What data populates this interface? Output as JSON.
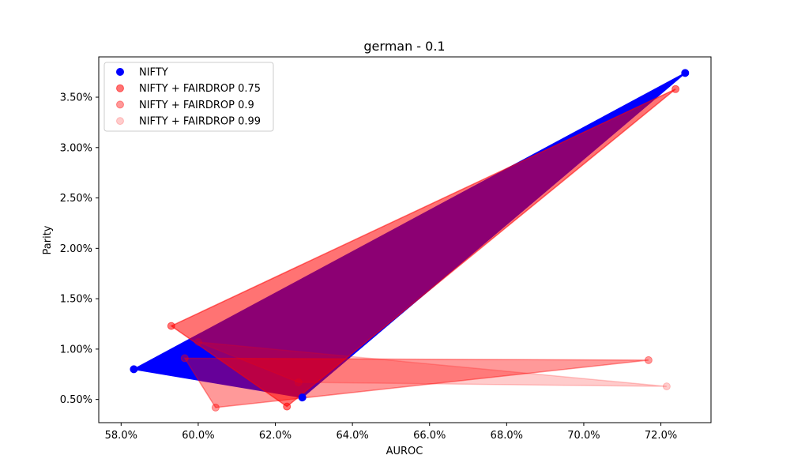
{
  "chart_data": {
    "type": "scatter",
    "title": "german - 0.1",
    "xlabel": "AUROC",
    "ylabel": "Parity",
    "xlim": [
      0.5742,
      0.733
    ],
    "ylim": [
      0.0027,
      0.039
    ],
    "xticks": [
      0.58,
      0.6,
      0.62,
      0.64,
      0.66,
      0.68,
      0.7,
      0.72
    ],
    "xtick_labels": [
      "58.0%",
      "60.0%",
      "62.0%",
      "64.0%",
      "66.0%",
      "68.0%",
      "70.0%",
      "72.0%"
    ],
    "yticks": [
      0.005,
      0.01,
      0.015,
      0.02,
      0.025,
      0.03,
      0.035
    ],
    "ytick_labels": [
      "0.50%",
      "1.00%",
      "1.50%",
      "2.00%",
      "2.50%",
      "3.00%",
      "3.50%"
    ],
    "grid": false,
    "legend_position": "top-left",
    "series": [
      {
        "name": "NIFTY",
        "color": "#0000ff",
        "alpha": 1.0,
        "points": [
          [
            0.5833,
            0.008
          ],
          [
            0.7263,
            0.0374
          ],
          [
            0.627,
            0.0052
          ]
        ]
      },
      {
        "name": "NIFTY + FAIRDROP 0.75",
        "color": "#ff0000",
        "alpha": 0.55,
        "points": [
          [
            0.7238,
            0.0358
          ],
          [
            0.593,
            0.0123
          ],
          [
            0.623,
            0.0043
          ]
        ]
      },
      {
        "name": "NIFTY + FAIRDROP 0.9",
        "color": "#ff0000",
        "alpha": 0.4,
        "points": [
          [
            0.6045,
            0.0042
          ],
          [
            0.7168,
            0.0089
          ],
          [
            0.5965,
            0.0091
          ]
        ]
      },
      {
        "name": "NIFTY + FAIRDROP 0.99",
        "color": "#ff0000",
        "alpha": 0.2,
        "points": [
          [
            0.7215,
            0.0063
          ],
          [
            0.6,
            0.0107
          ],
          [
            0.626,
            0.0067
          ]
        ]
      }
    ]
  }
}
